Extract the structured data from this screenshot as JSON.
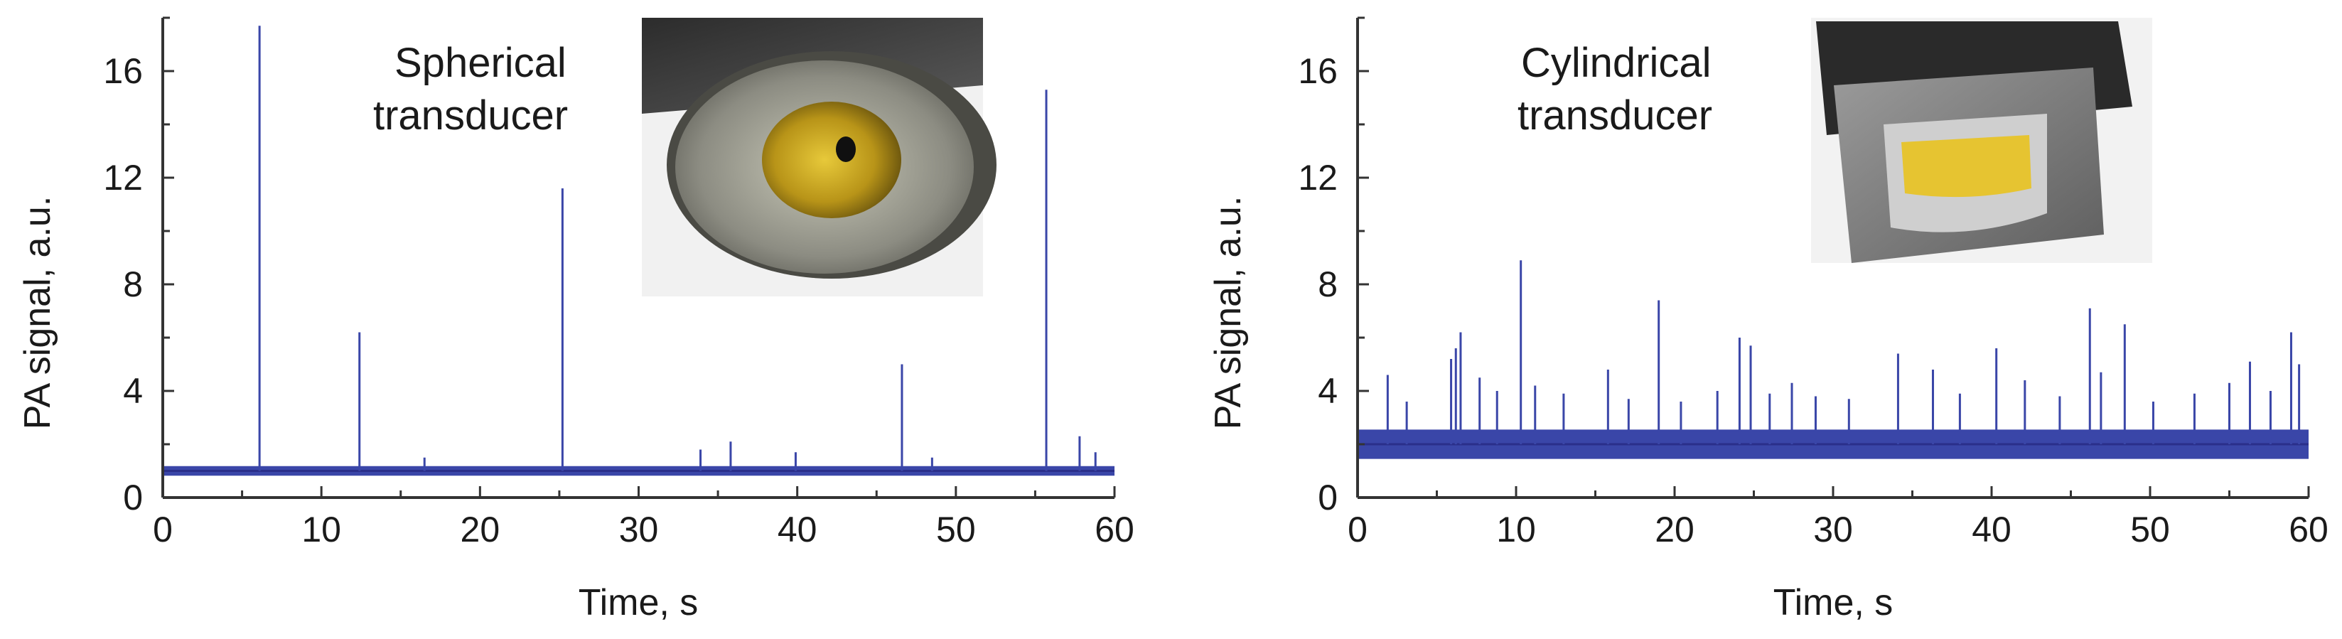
{
  "chart_data": [
    {
      "type": "line",
      "title": "Spherical transducer",
      "title_lines": [
        "Spherical",
        "transducer"
      ],
      "xlabel": "Time, s",
      "ylabel": "PA signal, a.u.",
      "xlim": [
        0,
        60
      ],
      "ylim": [
        0,
        18
      ],
      "x_ticks": [
        0,
        10,
        20,
        30,
        40,
        50,
        60
      ],
      "y_ticks": [
        0,
        4,
        8,
        12,
        16
      ],
      "x_tick_labels": [
        "0",
        "10",
        "20",
        "30",
        "40",
        "50",
        "60"
      ],
      "y_tick_labels": [
        "0",
        "4",
        "8",
        "12",
        "16"
      ],
      "color": "#3a46a8",
      "baseline": {
        "level": 1.0,
        "noise": 0.18
      },
      "spikes": [
        {
          "x": 6.1,
          "y": 17.7
        },
        {
          "x": 12.4,
          "y": 6.2
        },
        {
          "x": 16.5,
          "y": 1.5
        },
        {
          "x": 25.2,
          "y": 11.6
        },
        {
          "x": 33.9,
          "y": 1.8
        },
        {
          "x": 35.8,
          "y": 2.1
        },
        {
          "x": 39.9,
          "y": 1.7
        },
        {
          "x": 46.6,
          "y": 5.0
        },
        {
          "x": 48.5,
          "y": 1.5
        },
        {
          "x": 55.7,
          "y": 15.3
        },
        {
          "x": 57.8,
          "y": 2.3
        },
        {
          "x": 58.8,
          "y": 1.7
        }
      ],
      "inset": "photo of spherical transducer"
    },
    {
      "type": "line",
      "title": "Cylindrical transducer",
      "title_lines": [
        "Cylindrical",
        "transducer"
      ],
      "xlabel": "Time, s",
      "ylabel": "PA signal, a.u.",
      "xlim": [
        0,
        60
      ],
      "ylim": [
        0,
        18
      ],
      "x_ticks": [
        0,
        10,
        20,
        30,
        40,
        50,
        60
      ],
      "y_ticks": [
        0,
        4,
        8,
        12,
        16
      ],
      "x_tick_labels": [
        "0",
        "10",
        "20",
        "30",
        "40",
        "50",
        "60"
      ],
      "y_tick_labels": [
        "0",
        "4",
        "8",
        "12",
        "16"
      ],
      "color": "#3a46a8",
      "baseline": {
        "level": 2.0,
        "noise": 0.55
      },
      "spikes": [
        {
          "x": 1.9,
          "y": 4.6
        },
        {
          "x": 3.1,
          "y": 3.6
        },
        {
          "x": 5.9,
          "y": 5.2
        },
        {
          "x": 6.2,
          "y": 5.6
        },
        {
          "x": 6.5,
          "y": 6.2
        },
        {
          "x": 7.7,
          "y": 4.5
        },
        {
          "x": 8.8,
          "y": 4.0
        },
        {
          "x": 10.3,
          "y": 8.9
        },
        {
          "x": 11.2,
          "y": 4.2
        },
        {
          "x": 13.0,
          "y": 3.9
        },
        {
          "x": 15.8,
          "y": 4.8
        },
        {
          "x": 17.1,
          "y": 3.7
        },
        {
          "x": 19.0,
          "y": 7.4
        },
        {
          "x": 20.4,
          "y": 3.6
        },
        {
          "x": 22.7,
          "y": 4.0
        },
        {
          "x": 24.1,
          "y": 6.0
        },
        {
          "x": 24.8,
          "y": 5.7
        },
        {
          "x": 26.0,
          "y": 3.9
        },
        {
          "x": 27.4,
          "y": 4.3
        },
        {
          "x": 28.9,
          "y": 3.8
        },
        {
          "x": 31.0,
          "y": 3.7
        },
        {
          "x": 34.1,
          "y": 5.4
        },
        {
          "x": 36.3,
          "y": 4.8
        },
        {
          "x": 38.0,
          "y": 3.9
        },
        {
          "x": 40.3,
          "y": 5.6
        },
        {
          "x": 42.1,
          "y": 4.4
        },
        {
          "x": 44.3,
          "y": 3.8
        },
        {
          "x": 46.2,
          "y": 7.1
        },
        {
          "x": 46.9,
          "y": 4.7
        },
        {
          "x": 48.4,
          "y": 6.5
        },
        {
          "x": 50.2,
          "y": 3.6
        },
        {
          "x": 52.8,
          "y": 3.9
        },
        {
          "x": 55.0,
          "y": 4.3
        },
        {
          "x": 56.3,
          "y": 5.1
        },
        {
          "x": 57.6,
          "y": 4.0
        },
        {
          "x": 58.9,
          "y": 6.2
        },
        {
          "x": 59.4,
          "y": 5.0
        }
      ],
      "inset": "photo of cylindrical transducer"
    }
  ]
}
